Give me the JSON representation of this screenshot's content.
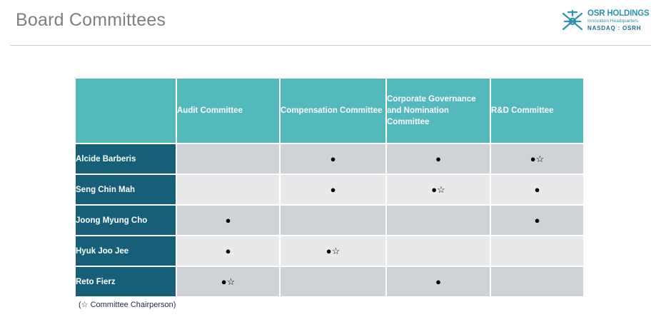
{
  "page": {
    "title": "Board Committees"
  },
  "logo": {
    "name": "OSR HOLDINGS",
    "tagline": "Innovation Headquarters",
    "ticker": "NASDAQ : OSRH",
    "icon": "osr-logo-icon",
    "color": "#2a93b0"
  },
  "table": {
    "columns": [
      "",
      "Audit Committee",
      "Compensation Committee",
      "Corporate Governance and Nomination Committee",
      "R&D Committee"
    ],
    "rows": [
      {
        "name": "Alcide Barberis",
        "cells": [
          "",
          "●",
          "●",
          "●☆"
        ]
      },
      {
        "name": "Seng Chin Mah",
        "cells": [
          "",
          "●",
          "●☆",
          "●"
        ]
      },
      {
        "name": "Joong Myung Cho",
        "cells": [
          "●",
          "",
          "",
          "●"
        ]
      },
      {
        "name": "Hyuk Joo Jee",
        "cells": [
          "●",
          "●☆",
          "",
          ""
        ]
      },
      {
        "name": "Reto Fierz",
        "cells": [
          "●☆",
          "",
          "●",
          ""
        ]
      }
    ],
    "colors": {
      "header": "#54b9bd",
      "name_column": "#175f79",
      "row_dark": "#cfd3d7",
      "row_light": "#e7e9eb"
    }
  },
  "footnote": "(☆ Committee Chairperson)"
}
